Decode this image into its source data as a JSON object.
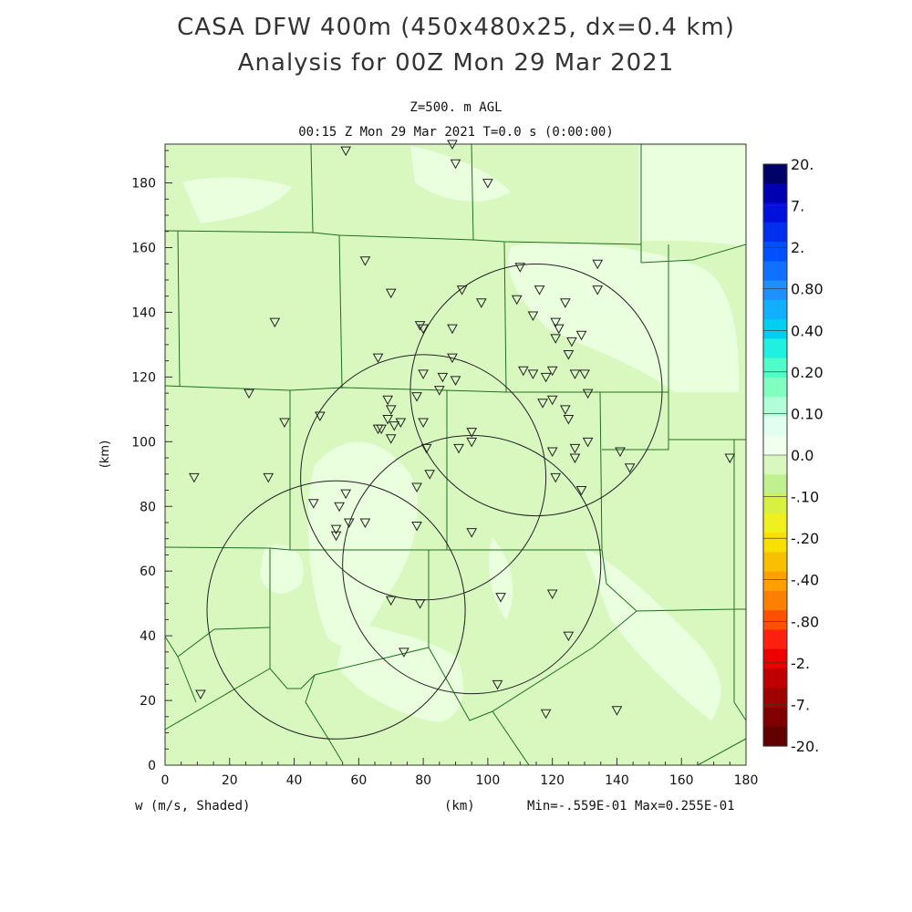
{
  "title": {
    "line1": "CASA DFW 400m (450x480x25, dx=0.4 km)",
    "line2": "Analysis for 00Z Mon 29 Mar 2021"
  },
  "subtitle": {
    "level": "Z=500. m AGL",
    "time": "00:15 Z Mon 29 Mar 2021   T=0.0 s (0:00:00)"
  },
  "axes": {
    "x_label": "(km)",
    "y_label": "(km)",
    "x_ticks": [
      "0",
      "20",
      "40",
      "60",
      "80",
      "100",
      "120",
      "140",
      "160",
      "180"
    ],
    "y_ticks": [
      "0",
      "20",
      "40",
      "60",
      "80",
      "100",
      "120",
      "140",
      "160",
      "180"
    ],
    "x_range": [
      0,
      180
    ],
    "y_range": [
      0,
      192
    ]
  },
  "footer": {
    "variable": "w (m/s, Shaded)",
    "unit": "(km)",
    "minmax": "Min=-.559E-01 Max=0.255E-01"
  },
  "colorbar": {
    "labels": [
      "20.",
      "7.",
      "2.",
      "0.80",
      "0.40",
      "0.20",
      "0.10",
      "0.0",
      "-.10",
      "-.20",
      "-.40",
      "-.80",
      "-2.",
      "-7.",
      "-20."
    ],
    "colors": [
      "#000066",
      "#0000b0",
      "#0010dd",
      "#0030ee",
      "#0050ff",
      "#1070ff",
      "#1e90ff",
      "#10b0ff",
      "#00d0f0",
      "#20f0e0",
      "#50ffc8",
      "#80ffc0",
      "#b0ffd8",
      "#e0fff0",
      "#f0ffee",
      "#d8f8c0",
      "#c0f090",
      "#d8f040",
      "#f0f020",
      "#f8e000",
      "#f8c000",
      "#ffa000",
      "#ff8000",
      "#ff5000",
      "#ff2010",
      "#ee0000",
      "#c00000",
      "#a00000",
      "#800000",
      "#600000"
    ]
  },
  "map": {
    "background_color": "#d8f8c0",
    "light_color": "#eaffde",
    "radar_circles": [
      {
        "cx": 115,
        "cy": 116,
        "r": 39
      },
      {
        "cx": 80,
        "cy": 89,
        "r": 38
      },
      {
        "cx": 95,
        "cy": 62,
        "r": 40
      },
      {
        "cx": 53,
        "cy": 48,
        "r": 40
      }
    ],
    "stations": [
      [
        56,
        190
      ],
      [
        89,
        192
      ],
      [
        90,
        186
      ],
      [
        100,
        180
      ],
      [
        62,
        156
      ],
      [
        70,
        146
      ],
      [
        92,
        147
      ],
      [
        98,
        143
      ],
      [
        34,
        137
      ],
      [
        79,
        136
      ],
      [
        80,
        135
      ],
      [
        89,
        135
      ],
      [
        66,
        126
      ],
      [
        89,
        126
      ],
      [
        80,
        121
      ],
      [
        86,
        120
      ],
      [
        90,
        119
      ],
      [
        85,
        116
      ],
      [
        26,
        115
      ],
      [
        69,
        113
      ],
      [
        78,
        114
      ],
      [
        66,
        104
      ],
      [
        70,
        110
      ],
      [
        37,
        106
      ],
      [
        48,
        108
      ],
      [
        69,
        107
      ],
      [
        67,
        104
      ],
      [
        71,
        105
      ],
      [
        73,
        106
      ],
      [
        70,
        101
      ],
      [
        80,
        106
      ],
      [
        95,
        103
      ],
      [
        95,
        100
      ],
      [
        91,
        98
      ],
      [
        81,
        98
      ],
      [
        9,
        89
      ],
      [
        32,
        89
      ],
      [
        82,
        90
      ],
      [
        78,
        86
      ],
      [
        46,
        81
      ],
      [
        54,
        80
      ],
      [
        56,
        84
      ],
      [
        57,
        75
      ],
      [
        62,
        75
      ],
      [
        53,
        73
      ],
      [
        53,
        71
      ],
      [
        78,
        74
      ],
      [
        95,
        72
      ],
      [
        70,
        51
      ],
      [
        79,
        50
      ],
      [
        74,
        35
      ],
      [
        104,
        52
      ],
      [
        120,
        53
      ],
      [
        125,
        40
      ],
      [
        103,
        25
      ],
      [
        118,
        16
      ],
      [
        140,
        17
      ],
      [
        11,
        22
      ],
      [
        110,
        154
      ],
      [
        116,
        147
      ],
      [
        124,
        143
      ],
      [
        134,
        155
      ],
      [
        134,
        147
      ],
      [
        109,
        144
      ],
      [
        114,
        139
      ],
      [
        121,
        137
      ],
      [
        122,
        135
      ],
      [
        121,
        132
      ],
      [
        126,
        131
      ],
      [
        129,
        133
      ],
      [
        125,
        127
      ],
      [
        111,
        122
      ],
      [
        114,
        121
      ],
      [
        118,
        120
      ],
      [
        120,
        122
      ],
      [
        127,
        121
      ],
      [
        130,
        121
      ],
      [
        131,
        115
      ],
      [
        120,
        113
      ],
      [
        117,
        112
      ],
      [
        124,
        110
      ],
      [
        125,
        107
      ],
      [
        120,
        97
      ],
      [
        127,
        98
      ],
      [
        127,
        95
      ],
      [
        131,
        100
      ],
      [
        121,
        89
      ],
      [
        129,
        85
      ],
      [
        141,
        97
      ],
      [
        144,
        92
      ],
      [
        175,
        95
      ]
    ]
  }
}
